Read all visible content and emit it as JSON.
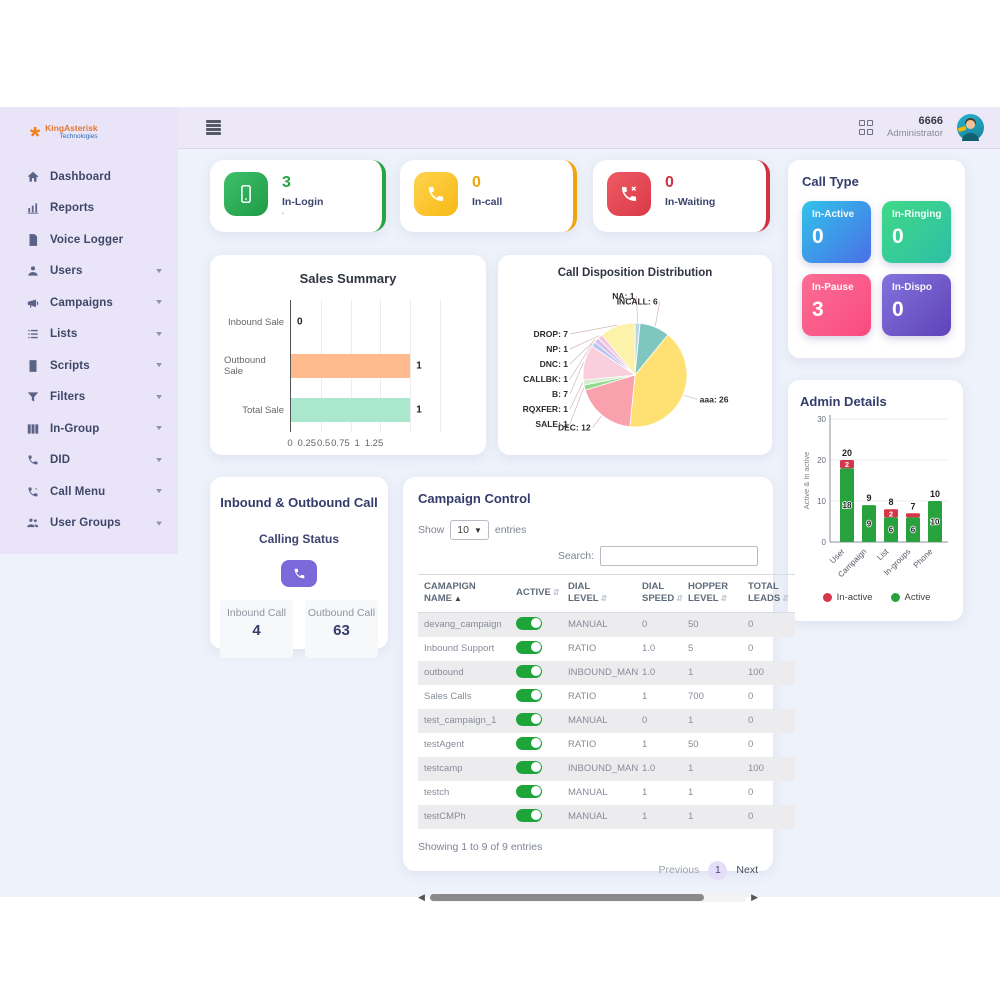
{
  "sidebar": {
    "logo": {
      "brand": "KingAsterisk",
      "sub": "Technologies"
    },
    "items": [
      {
        "label": "Dashboard",
        "icon": "home",
        "expandable": false
      },
      {
        "label": "Reports",
        "icon": "chart",
        "expandable": false
      },
      {
        "label": "Voice Logger",
        "icon": "doc",
        "expandable": false
      },
      {
        "label": "Users",
        "icon": "user",
        "expandable": true
      },
      {
        "label": "Campaigns",
        "icon": "megaphone",
        "expandable": true
      },
      {
        "label": "Lists",
        "icon": "list",
        "expandable": true
      },
      {
        "label": "Scripts",
        "icon": "script",
        "expandable": true
      },
      {
        "label": "Filters",
        "icon": "filter",
        "expandable": true
      },
      {
        "label": "In-Group",
        "icon": "columns",
        "expandable": true
      },
      {
        "label": "DID",
        "icon": "phone",
        "expandable": true
      },
      {
        "label": "Call Menu",
        "icon": "callmenu",
        "expandable": true
      },
      {
        "label": "User Groups",
        "icon": "users",
        "expandable": true
      }
    ]
  },
  "topbar": {
    "user_id": "6666",
    "user_role": "Administrator"
  },
  "stat_cards": [
    {
      "value": "3",
      "label": "In-Login",
      "note": "'",
      "color": "#28a447",
      "tile_from": "#3ec06a",
      "tile_to": "#1f9b46",
      "icon": "mobile"
    },
    {
      "value": "0",
      "label": "In-call",
      "note": "",
      "color": "#efa512",
      "tile_from": "#ffd34d",
      "tile_to": "#f7b917",
      "icon": "phone"
    },
    {
      "value": "0",
      "label": "In-Waiting",
      "note": "",
      "color": "#cf3342",
      "tile_from": "#ef5b64",
      "tile_to": "#d93a47",
      "icon": "phonex"
    }
  ],
  "call_type": {
    "title": "Call Type",
    "tiles": [
      {
        "label": "In-Active",
        "value": "0",
        "from": "#31c3e8",
        "to": "#4a6fe8"
      },
      {
        "label": "In-Ringing",
        "value": "0",
        "from": "#40d987",
        "to": "#2dbfa6"
      },
      {
        "label": "In-Pause",
        "value": "3",
        "from": "#fb6e96",
        "to": "#f94a7e"
      },
      {
        "label": "In-Dispo",
        "value": "0",
        "from": "#8273dc",
        "to": "#5f43b8"
      }
    ]
  },
  "chart_data": [
    {
      "id": "sales_summary",
      "type": "bar",
      "orientation": "horizontal",
      "title": "Sales Summary",
      "categories": [
        "Inbound Sale",
        "Outbound Sale",
        "Total Sale"
      ],
      "values": [
        0,
        1,
        1
      ],
      "colors": [
        "#ffbb8e",
        "#ffbb8e",
        "#a9e8cd"
      ],
      "xlim": [
        0,
        1.25
      ],
      "xticks": [
        "0",
        "0.25",
        "0.5",
        "0.75",
        "1",
        "1.25"
      ],
      "grid": true
    },
    {
      "id": "call_disposition",
      "type": "pie",
      "title": "Call Disposition Distribution",
      "labels": [
        "NA",
        "INCALL",
        "aaa",
        "DEC",
        "SALE",
        "RQXFER",
        "B",
        "CALLBK",
        "DNC",
        "NP",
        "DROP"
      ],
      "values": [
        1,
        6,
        26,
        12,
        1,
        1,
        7,
        1,
        1,
        1,
        7
      ],
      "colors": [
        "#b8d8ea",
        "#7fc6be",
        "#ffe072",
        "#f9a2ad",
        "#8fd98c",
        "#d4edd0",
        "#f9cfdd",
        "#b9c8f2",
        "#d9bfe8",
        "#f6c6dc",
        "#fdf2a9"
      ]
    },
    {
      "id": "admin_details",
      "type": "bar",
      "stacked": true,
      "title": "Admin Details",
      "categories": [
        "User",
        "Campaign",
        "List",
        "In-groups",
        "Phone"
      ],
      "series": [
        {
          "name": "Active",
          "color": "#28a23c",
          "values": [
            18,
            9,
            6,
            6,
            10
          ]
        },
        {
          "name": "In-active",
          "color": "#d63649",
          "values": [
            2,
            0,
            2,
            1,
            0
          ]
        }
      ],
      "totals": [
        20,
        9,
        8,
        7,
        10
      ],
      "ylabel": "Active & In active",
      "ylim": [
        0,
        30
      ],
      "yticks": [
        0,
        10,
        20,
        30
      ],
      "legend": [
        {
          "label": "In-active",
          "color": "#d63649"
        },
        {
          "label": "Active",
          "color": "#28a23c"
        }
      ],
      "legend_position": "bottom"
    }
  ],
  "inbound_outbound": {
    "title": "Inbound & Outbound Call",
    "subtitle": "Calling Status",
    "boxes": [
      {
        "label": "Inbound Call",
        "value": "4"
      },
      {
        "label": "Outbound Call",
        "value": "63"
      }
    ]
  },
  "campaign_control": {
    "title": "Campaign Control",
    "show_label": "Show",
    "page_size": "10",
    "entries_label": "entries",
    "search_label": "Search:",
    "search_value": "",
    "columns": [
      "CAMAPIGN NAME",
      "ACTIVE",
      "DIAL LEVEL",
      "DIAL SPEED",
      "HOPPER LEVEL",
      "TOTAL LEADS"
    ],
    "rows": [
      {
        "name": "devang_campaign",
        "active": true,
        "dial_level": "MANUAL",
        "dial_speed": "0",
        "hopper_level": "50",
        "total_leads": "0"
      },
      {
        "name": "Inbound Support",
        "active": true,
        "dial_level": "RATIO",
        "dial_speed": "1.0",
        "hopper_level": "5",
        "total_leads": "0"
      },
      {
        "name": "outbound",
        "active": true,
        "dial_level": "INBOUND_MAN",
        "dial_speed": "1.0",
        "hopper_level": "1",
        "total_leads": "100"
      },
      {
        "name": "Sales Calls",
        "active": true,
        "dial_level": "RATIO",
        "dial_speed": "1",
        "hopper_level": "700",
        "total_leads": "0"
      },
      {
        "name": "test_campaign_1",
        "active": true,
        "dial_level": "MANUAL",
        "dial_speed": "0",
        "hopper_level": "1",
        "total_leads": "0"
      },
      {
        "name": "testAgent",
        "active": true,
        "dial_level": "RATIO",
        "dial_speed": "1",
        "hopper_level": "50",
        "total_leads": "0"
      },
      {
        "name": "testcamp",
        "active": true,
        "dial_level": "INBOUND_MAN",
        "dial_speed": "1.0",
        "hopper_level": "1",
        "total_leads": "100"
      },
      {
        "name": "testch",
        "active": true,
        "dial_level": "MANUAL",
        "dial_speed": "1",
        "hopper_level": "1",
        "total_leads": "0"
      },
      {
        "name": "testCMPh",
        "active": true,
        "dial_level": "MANUAL",
        "dial_speed": "1",
        "hopper_level": "1",
        "total_leads": "0"
      }
    ],
    "footer": "Showing 1 to 9 of 9 entries",
    "pagination": {
      "previous": "Previous",
      "page": "1",
      "next": "Next"
    }
  }
}
